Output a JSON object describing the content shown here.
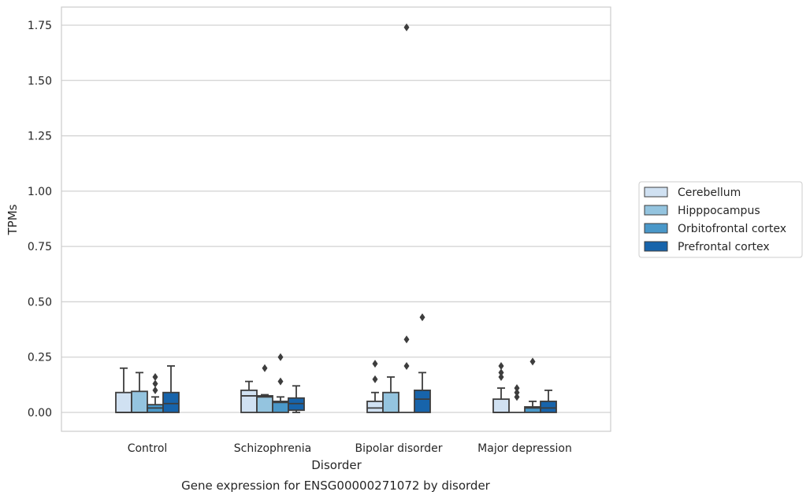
{
  "chart_data": {
    "type": "boxplot",
    "caption": "Gene expression for ENSG00000271072 by disorder",
    "xlabel": "Disorder",
    "ylabel": "TPMs",
    "ylim": [
      -0.085,
      1.83
    ],
    "yticks": [
      0.0,
      0.25,
      0.5,
      0.75,
      1.0,
      1.25,
      1.5,
      1.75
    ],
    "ytick_labels": [
      "0.00",
      "0.25",
      "0.50",
      "0.75",
      "1.00",
      "1.25",
      "1.50",
      "1.75"
    ],
    "grid": "horizontal",
    "legend_position": "right",
    "categories": [
      "Control",
      "Schizophrenia",
      "Bipolar disorder",
      "Major depression"
    ],
    "series": [
      {
        "name": "Cerebellum",
        "color": "#d0e1f2",
        "boxes": [
          {
            "min": 0.0,
            "q1": 0.0,
            "median": 0.0,
            "q3": 0.09,
            "max": 0.2,
            "outliers": []
          },
          {
            "min": 0.0,
            "q1": 0.0,
            "median": 0.075,
            "q3": 0.1,
            "max": 0.14,
            "outliers": []
          },
          {
            "min": 0.0,
            "q1": 0.0,
            "median": 0.02,
            "q3": 0.05,
            "max": 0.09,
            "outliers": [
              0.15,
              0.22
            ]
          },
          {
            "min": 0.0,
            "q1": 0.0,
            "median": 0.0,
            "q3": 0.06,
            "max": 0.11,
            "outliers": [
              0.16,
              0.18,
              0.21
            ]
          }
        ]
      },
      {
        "name": "Hipppocampus",
        "color": "#94c4df",
        "boxes": [
          {
            "min": 0.0,
            "q1": 0.0,
            "median": 0.0,
            "q3": 0.095,
            "max": 0.18,
            "outliers": []
          },
          {
            "min": 0.0,
            "q1": 0.0,
            "median": 0.07,
            "q3": 0.075,
            "max": 0.08,
            "outliers": [
              0.2
            ]
          },
          {
            "min": 0.0,
            "q1": 0.0,
            "median": 0.0,
            "q3": 0.09,
            "max": 0.16,
            "outliers": []
          },
          {
            "min": 0.0,
            "q1": 0.0,
            "median": 0.0,
            "q3": 0.0,
            "max": 0.0,
            "outliers": [
              0.07,
              0.09,
              0.11
            ]
          }
        ]
      },
      {
        "name": "Orbitofrontal cortex",
        "color": "#4a98c9",
        "boxes": [
          {
            "min": 0.0,
            "q1": 0.0,
            "median": 0.02,
            "q3": 0.035,
            "max": 0.07,
            "outliers": [
              0.1,
              0.13,
              0.16
            ]
          },
          {
            "min": 0.0,
            "q1": 0.0,
            "median": 0.045,
            "q3": 0.05,
            "max": 0.07,
            "outliers": [
              0.14,
              0.25
            ]
          },
          {
            "min": 0.0,
            "q1": 0.0,
            "median": 0.0,
            "q3": 0.0,
            "max": 0.0,
            "outliers": [
              0.21,
              0.33,
              1.74
            ]
          },
          {
            "min": 0.0,
            "q1": 0.0,
            "median": 0.02,
            "q3": 0.025,
            "max": 0.05,
            "outliers": [
              0.23
            ]
          }
        ]
      },
      {
        "name": "Prefrontal cortex",
        "color": "#1764ab",
        "boxes": [
          {
            "min": 0.0,
            "q1": 0.0,
            "median": 0.04,
            "q3": 0.09,
            "max": 0.21,
            "outliers": []
          },
          {
            "min": 0.0,
            "q1": 0.01,
            "median": 0.04,
            "q3": 0.065,
            "max": 0.12,
            "outliers": []
          },
          {
            "min": 0.0,
            "q1": 0.0,
            "median": 0.06,
            "q3": 0.1,
            "max": 0.18,
            "outliers": [
              0.43
            ]
          },
          {
            "min": 0.0,
            "q1": 0.0,
            "median": 0.02,
            "q3": 0.05,
            "max": 0.1,
            "outliers": []
          }
        ]
      }
    ]
  }
}
